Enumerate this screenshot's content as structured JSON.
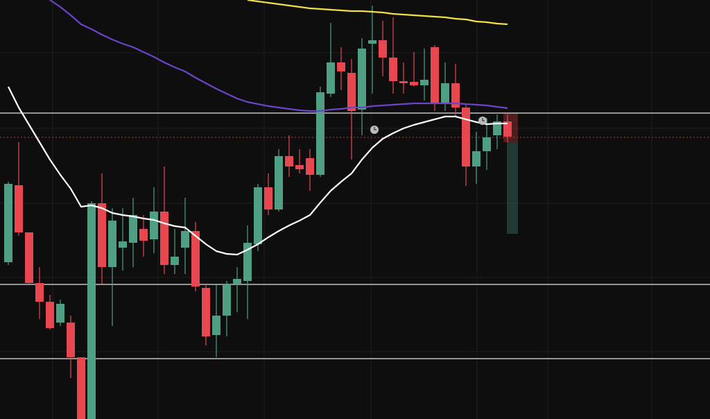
{
  "chart_data": {
    "type": "candlestick",
    "ylim": [
      0,
      604
    ],
    "up_color": "#4fa083",
    "down_color": "#e8474f",
    "open": [
      226,
      337,
      269,
      196,
      169,
      139,
      139,
      89,
      0,
      311,
      219,
      247,
      254,
      274,
      259,
      299,
      222,
      247,
      271,
      189,
      121,
      149,
      194,
      199,
      252,
      334,
      302,
      379,
      366,
      376,
      352,
      469,
      514,
      499,
      446,
      541,
      546,
      521,
      487,
      486,
      481,
      536,
      456,
      484,
      449,
      364,
      386,
      409,
      429
    ],
    "high": [
      342,
      399,
      269,
      219,
      179,
      172,
      149,
      89,
      314,
      354,
      304,
      304,
      319,
      294,
      334,
      364,
      274,
      319,
      284,
      194,
      194,
      199,
      219,
      279,
      339,
      354,
      389,
      409,
      389,
      389,
      479,
      571,
      536,
      519,
      549,
      596,
      574,
      579,
      514,
      529,
      534,
      539,
      514,
      512,
      454,
      414,
      434,
      439,
      439
    ],
    "low": [
      222,
      264,
      194,
      144,
      129,
      134,
      59,
      0,
      0,
      194,
      134,
      214,
      219,
      234,
      239,
      209,
      209,
      209,
      184,
      106,
      89,
      119,
      154,
      144,
      242,
      294,
      299,
      349,
      354,
      329,
      349,
      464,
      474,
      374,
      409,
      469,
      494,
      469,
      469,
      479,
      459,
      444,
      444,
      436,
      336,
      339,
      359,
      389,
      399
    ],
    "close": [
      339,
      269,
      196,
      169,
      131,
      166,
      89,
      0,
      311,
      219,
      286,
      256,
      294,
      257,
      299,
      222,
      234,
      271,
      191,
      119,
      149,
      194,
      202,
      254,
      334,
      302,
      379,
      364,
      360,
      352,
      471,
      514,
      501,
      444,
      534,
      546,
      521,
      487,
      484,
      481,
      489,
      456,
      484,
      449,
      364,
      386,
      406,
      429,
      407
    ],
    "series": [
      {
        "color": "#ffffff",
        "values": [
          479,
          449,
          424,
          399,
          374,
          352,
          332,
          306,
          308,
          304,
          297,
          294,
          292,
          289,
          287,
          282,
          278,
          276,
          264,
          252,
          242,
          238,
          237,
          244,
          252,
          262,
          271,
          279,
          286,
          294,
          312,
          329,
          342,
          354,
          374,
          391,
          404,
          412,
          419,
          424,
          428,
          432,
          436,
          436,
          432,
          428,
          425,
          426,
          426
        ]
      },
      {
        "color": "#6b44c8",
        "values": [
          null,
          null,
          null,
          null,
          604,
          594,
          582,
          569,
          562,
          554,
          547,
          541,
          536,
          529,
          522,
          514,
          507,
          501,
          492,
          484,
          476,
          469,
          462,
          457,
          454,
          451,
          449,
          447,
          445,
          444,
          444,
          446,
          447,
          449,
          449,
          451,
          452,
          453,
          454,
          455,
          455,
          455,
          455,
          455,
          454,
          453,
          452,
          450,
          448
        ]
      },
      {
        "color": "#f2e04a",
        "values": [
          null,
          null,
          null,
          null,
          null,
          null,
          null,
          null,
          null,
          null,
          null,
          null,
          null,
          null,
          null,
          null,
          null,
          null,
          null,
          null,
          null,
          null,
          null,
          604,
          602,
          600,
          598,
          596,
          594,
          592,
          591,
          590,
          589,
          588,
          588,
          587,
          586,
          584,
          583,
          582,
          581,
          580,
          579,
          577,
          576,
          573,
          572,
          570,
          569
        ]
      }
    ],
    "hlines": [
      441,
      194,
      87
    ],
    "hline_color": "#e6e6e6",
    "price_line": 406,
    "price_line_color": "#c0392b",
    "position": {
      "stop": 441,
      "entry": 399,
      "target": 267
    }
  }
}
